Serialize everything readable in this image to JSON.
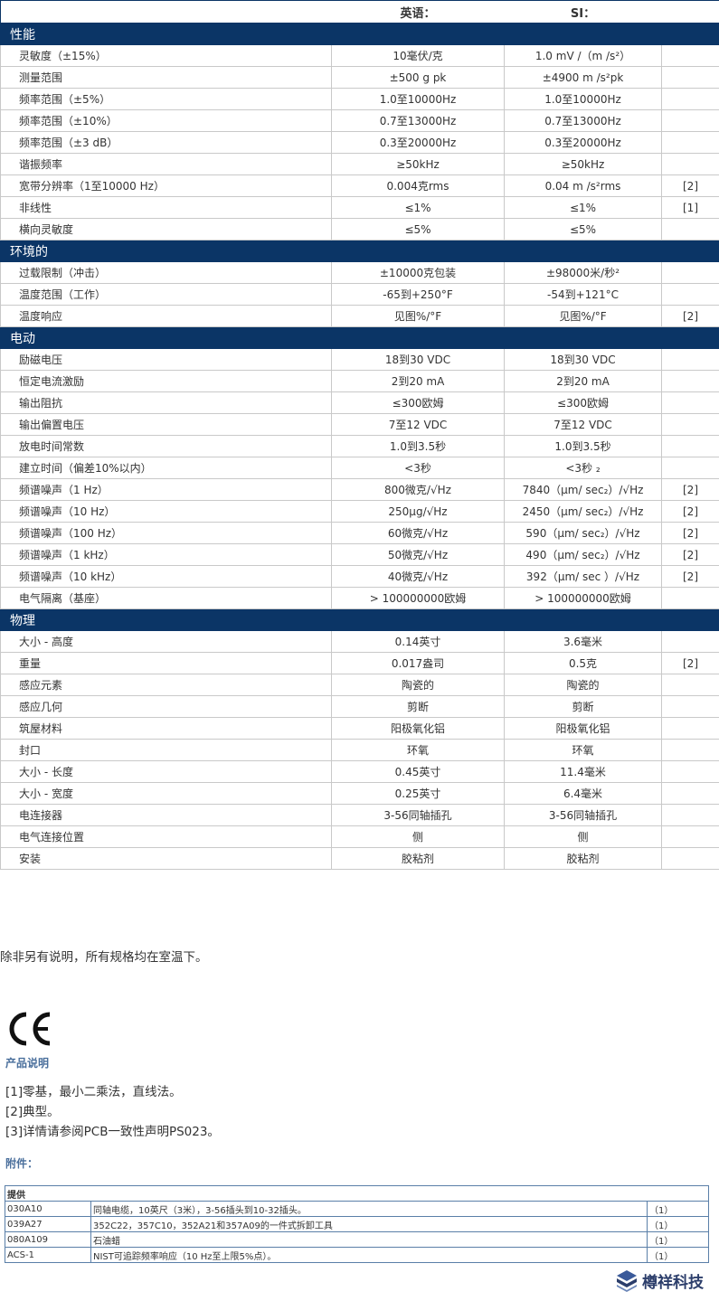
{
  "spec_table": {
    "header": [
      "英语：",
      "SI："
    ],
    "sections": [
      {
        "title": "性能",
        "rows": [
          [
            "灵敏度（±15%）",
            "10毫伏/克",
            "1.0 mV /（m /s²）"
          ],
          [
            "测量范围",
            "±500 g pk",
            "±4900 m /s²pk"
          ],
          [
            "频率范围（±5%）",
            "1.0至10000Hz",
            "1.0至10000Hz"
          ],
          [
            "频率范围（±10%）",
            "0.7至13000Hz",
            "0.7至13000Hz"
          ],
          [
            "频率范围（±3 dB）",
            "0.3至20000Hz",
            "0.3至20000Hz"
          ],
          [
            "谐振频率",
            "≥50kHz",
            "≥50kHz"
          ],
          [
            "宽带分辨率（1至10000 Hz）",
            "0.004克rms",
            "0.04 m /s²rms",
            "[2]"
          ],
          [
            "非线性",
            "≤1%",
            "≤1%",
            "[1]"
          ],
          [
            "横向灵敏度",
            "≤5%",
            "≤5%"
          ]
        ]
      },
      {
        "title": "环境的",
        "rows": [
          [
            "过载限制（冲击）",
            "±10000克包装",
            "±98000米/秒²"
          ],
          [
            "温度范围（工作）",
            "-65到+250°F",
            "-54到+121°C"
          ],
          [
            "温度响应",
            "见图%/°F",
            "见图%/°F",
            "[2]"
          ]
        ]
      },
      {
        "title": "电动",
        "rows": [
          [
            "励磁电压",
            "18到30 VDC",
            "18到30 VDC"
          ],
          [
            "恒定电流激励",
            "2到20 mA",
            "2到20 mA"
          ],
          [
            "输出阻抗",
            "≤300欧姆",
            "≤300欧姆"
          ],
          [
            "输出偏置电压",
            "7至12 VDC",
            "7至12 VDC"
          ],
          [
            "放电时间常数",
            "1.0到3.5秒",
            "1.0到3.5秒"
          ],
          [
            "建立时间（偏差10%以内）",
            "<3秒",
            "<3秒 ₂"
          ],
          [
            "频谱噪声（1 Hz）",
            "800微克/√Hz",
            "7840（μm/ sec₂）/√Hz",
            "[2]"
          ],
          [
            "频谱噪声（10 Hz）",
            "250μg/√Hz",
            "2450（μm/ sec₂）/√Hz",
            "[2]"
          ],
          [
            "频谱噪声（100 Hz）",
            "60微克/√Hz",
            "590（μm/ sec₂）/√Hz",
            "[2]"
          ],
          [
            "频谱噪声（1 kHz）",
            "50微克/√Hz",
            "490（μm/ sec₂）/√Hz",
            "[2]"
          ],
          [
            "频谱噪声（10 kHz）",
            "40微克/√Hz",
            "392（μm/ sec ）/√Hz",
            "[2]"
          ],
          [
            "电气隔离（基座）",
            "> 100000000欧姆",
            "> 100000000欧姆"
          ]
        ]
      },
      {
        "title": "物理",
        "rows": [
          [
            "大小 - 高度",
            "0.14英寸",
            "3.6毫米"
          ],
          [
            "重量",
            "0.017盎司",
            "0.5克",
            "[2]"
          ],
          [
            "感应元素",
            "陶瓷的",
            "陶瓷的"
          ],
          [
            "感应几何",
            "剪断",
            "剪断"
          ],
          [
            "筑屋材料",
            "阳极氧化铝",
            "阳极氧化铝"
          ],
          [
            "封口",
            "环氧",
            "环氧"
          ],
          [
            "大小 - 长度",
            "0.45英寸",
            "11.4毫米"
          ],
          [
            "大小 - 宽度",
            "0.25英寸",
            "6.4毫米"
          ],
          [
            "电连接器",
            "3-56同轴插孔",
            "3-56同轴插孔"
          ],
          [
            "电气连接位置",
            "侧",
            "侧"
          ],
          [
            "安装",
            "胶粘剂",
            "胶粘剂"
          ]
        ]
      }
    ]
  },
  "footnote": "除非另有说明，所有规格均在室温下。",
  "product_notes": {
    "title": "产品说明",
    "items": [
      "[1]零基，最小二乘法，直线法。",
      "[2]典型。",
      "[3]详情请参阅PCB一致性声明PS023。"
    ]
  },
  "accessories": {
    "title": "附件：",
    "header": "提供",
    "rows": [
      [
        "030A10",
        "同轴电缆，10英尺（3米），3-56插头到10-32插头。",
        "（1）"
      ],
      [
        "039A27",
        "352C22，357C10，352A21和357A09的一件式拆卸工具",
        "（1）"
      ],
      [
        "080A109",
        "石油蜡",
        "（1）"
      ],
      [
        "ACS-1",
        "NIST可追踪频率响应（10 Hz至上限5%点）。",
        "（1）"
      ]
    ]
  },
  "logo": "樽祥科技"
}
